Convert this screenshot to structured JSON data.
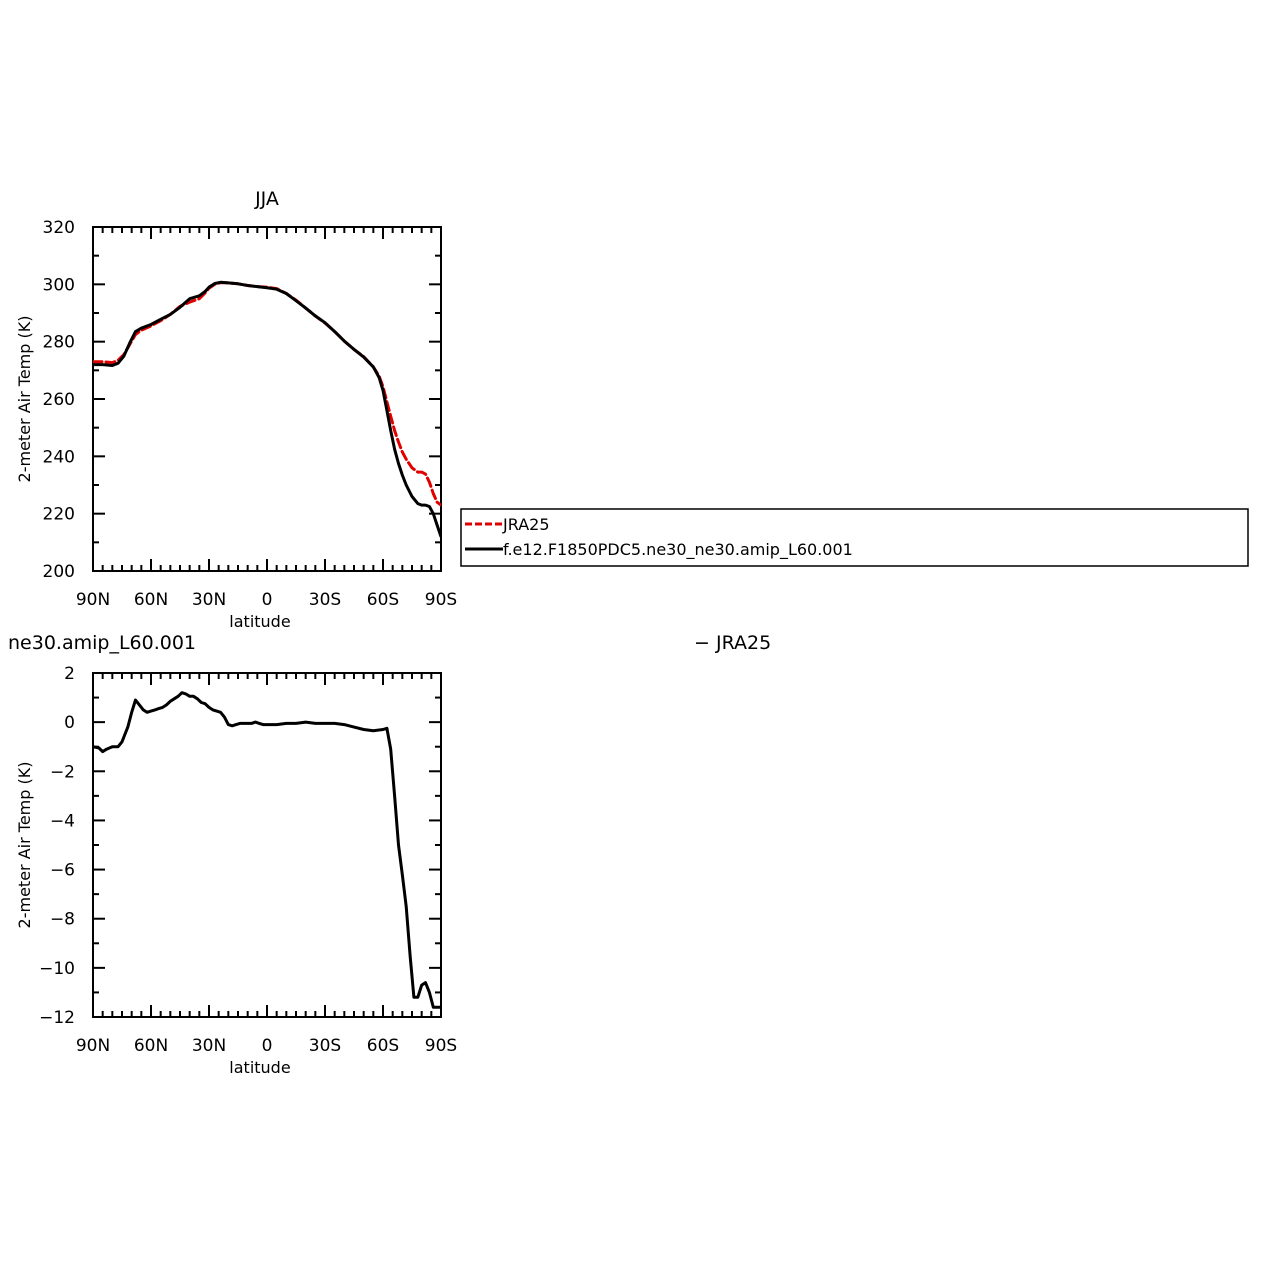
{
  "chart_data": [
    {
      "type": "line",
      "title": "JJA",
      "xlabel": "latitude",
      "ylabel": "2-meter Air Temp (K)",
      "xlim": [
        90,
        -90
      ],
      "ylim": [
        200,
        320
      ],
      "x_ticks": [
        90,
        60,
        30,
        0,
        -30,
        -60,
        -90
      ],
      "x_tick_labels": [
        "90N",
        "60N",
        "30N",
        "0",
        "30S",
        "60S",
        "90S"
      ],
      "y_ticks": [
        200,
        220,
        240,
        260,
        280,
        300,
        320
      ],
      "y_tick_labels": [
        "200",
        "220",
        "240",
        "260",
        "280",
        "300",
        "320"
      ],
      "legend_location": "right, outside plot",
      "series": [
        {
          "name": "JRA25",
          "color": "#e00000",
          "dash": "dashed",
          "x": [
            90,
            85,
            80,
            77,
            74,
            71,
            68,
            65,
            60,
            55,
            50,
            45,
            40,
            35,
            32,
            30,
            27,
            24,
            20,
            15,
            10,
            5,
            0,
            -5,
            -10,
            -15,
            -20,
            -25,
            -30,
            -35,
            -40,
            -45,
            -50,
            -55,
            -58,
            -60,
            -62,
            -64,
            -66,
            -68,
            -70,
            -72,
            -75,
            -78,
            -80,
            -82,
            -84,
            -86,
            -88,
            -90
          ],
          "y": [
            273,
            273,
            272.7,
            273.5,
            275.5,
            279,
            282.5,
            284,
            285.5,
            287.3,
            289.5,
            292.3,
            293.8,
            295,
            297,
            298.6,
            300,
            300.6,
            300.5,
            300.2,
            299.6,
            299.2,
            299,
            298.5,
            296.8,
            294.5,
            291.7,
            289,
            286.5,
            283.5,
            280.2,
            277.3,
            274.8,
            271.2,
            268,
            264.3,
            259,
            254,
            249,
            245,
            241.5,
            239,
            236,
            234.5,
            234.5,
            233.8,
            231,
            227,
            224,
            223
          ]
        },
        {
          "name": "f.e12.F1850PDC5.ne30_ne30.amip_L60.001",
          "color": "#000000",
          "dash": "solid",
          "x": [
            90,
            85,
            80,
            77,
            74,
            71,
            68,
            65,
            60,
            55,
            50,
            45,
            40,
            35,
            32,
            30,
            27,
            24,
            20,
            15,
            10,
            5,
            0,
            -5,
            -10,
            -15,
            -20,
            -25,
            -30,
            -35,
            -40,
            -45,
            -50,
            -55,
            -58,
            -60,
            -62,
            -64,
            -66,
            -68,
            -70,
            -72,
            -75,
            -78,
            -80,
            -82,
            -84,
            -86,
            -88,
            -90
          ],
          "y": [
            272,
            272,
            271.7,
            272.5,
            275,
            279.5,
            283.5,
            284.7,
            286,
            287.8,
            289.5,
            292,
            295,
            296,
            297.5,
            299,
            300.3,
            300.7,
            300.5,
            300.2,
            299.6,
            299.2,
            298.8,
            298.3,
            296.8,
            294.3,
            291.7,
            289,
            286.6,
            283.5,
            280.2,
            277.3,
            274.6,
            271.2,
            267.5,
            263,
            256,
            249,
            242.5,
            237.5,
            233.5,
            230,
            226,
            223.5,
            223,
            223,
            222.5,
            220,
            216,
            212
          ]
        }
      ]
    },
    {
      "type": "line",
      "title": "ne30.amip_L60.001",
      "title_right": "− JRA25",
      "xlabel": "latitude",
      "ylabel": "2-meter Air Temp (K)",
      "xlim": [
        90,
        -90
      ],
      "ylim": [
        -12,
        2
      ],
      "x_ticks": [
        90,
        60,
        30,
        0,
        -30,
        -60,
        -90
      ],
      "x_tick_labels": [
        "90N",
        "60N",
        "30N",
        "0",
        "30S",
        "60S",
        "90S"
      ],
      "y_ticks": [
        -12,
        -10,
        -8,
        -6,
        -4,
        -2,
        0,
        2
      ],
      "y_tick_labels": [
        "−12",
        "−10",
        "−8",
        "−6",
        "−4",
        "−2",
        "0",
        "2"
      ],
      "series": [
        {
          "name": "",
          "color": "#000000",
          "dash": "solid",
          "x": [
            90,
            87,
            85,
            83,
            80,
            77,
            75,
            72,
            70,
            68,
            66,
            64,
            62,
            60,
            58,
            56,
            54,
            52,
            50,
            48,
            46,
            44,
            42,
            40,
            38,
            36,
            34,
            32,
            30,
            28,
            26,
            24,
            22,
            20,
            18,
            16,
            14,
            12,
            10,
            8,
            6,
            4,
            2,
            0,
            -5,
            -10,
            -15,
            -20,
            -25,
            -30,
            -35,
            -40,
            -45,
            -50,
            -55,
            -60,
            -62,
            -64,
            -66,
            -68,
            -70,
            -72,
            -74,
            -76,
            -78,
            -80,
            -82,
            -84,
            -86,
            -88,
            -90
          ],
          "y": [
            -1,
            -1.05,
            -1.2,
            -1.1,
            -1,
            -1,
            -0.8,
            -0.2,
            0.4,
            0.9,
            0.7,
            0.5,
            0.4,
            0.45,
            0.5,
            0.55,
            0.6,
            0.7,
            0.85,
            0.95,
            1.05,
            1.2,
            1.15,
            1.05,
            1.05,
            0.95,
            0.8,
            0.75,
            0.6,
            0.5,
            0.45,
            0.4,
            0.2,
            -0.1,
            -0.15,
            -0.1,
            -0.05,
            -0.05,
            -0.05,
            -0.05,
            0,
            -0.05,
            -0.1,
            -0.1,
            -0.1,
            -0.05,
            -0.05,
            0,
            -0.05,
            -0.05,
            -0.05,
            -0.1,
            -0.2,
            -0.3,
            -0.35,
            -0.3,
            -0.25,
            -1.1,
            -3,
            -5,
            -6.2,
            -7.5,
            -9.5,
            -11.2,
            -11.2,
            -10.7,
            -10.6,
            -11,
            -11.6,
            -11.6,
            -11.6
          ]
        }
      ]
    }
  ]
}
